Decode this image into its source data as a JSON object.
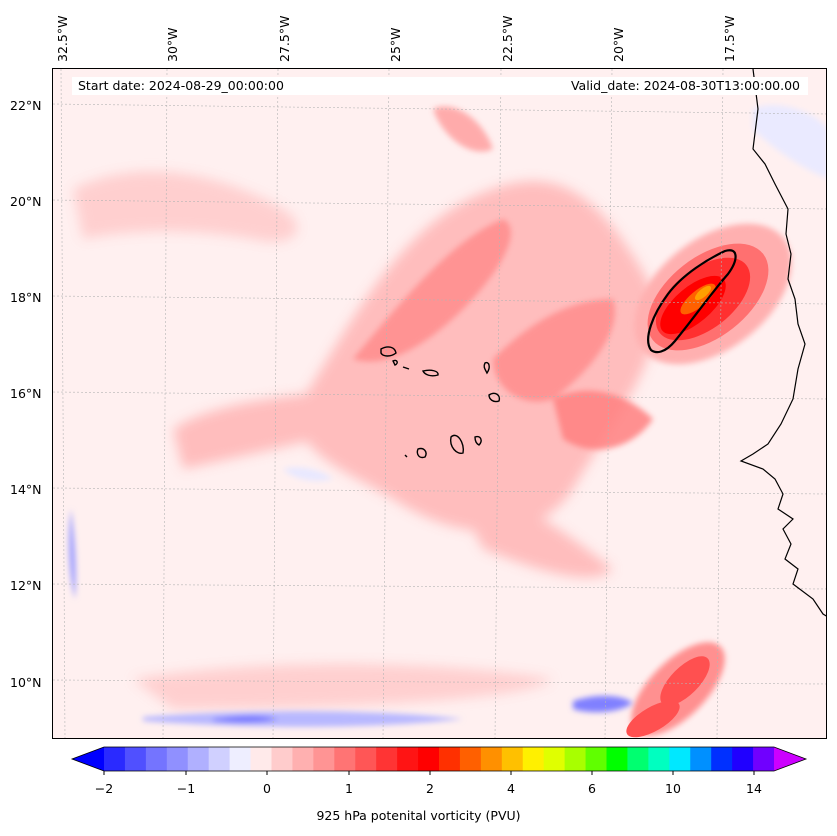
{
  "map": {
    "start_date": "Start date: 2024-08-29_00:00:00",
    "valid_date": "Valid_date: 2024-08-30T13:00:00.00",
    "lon_labels": [
      "32.5°W",
      "30°W",
      "27.5°W",
      "25°W",
      "22.5°W",
      "20°W",
      "17.5°W"
    ],
    "lat_labels": [
      "22°N",
      "20°N",
      "18°N",
      "16°N",
      "14°N",
      "12°N",
      "10°N"
    ],
    "colors": {
      "coast": "#000000",
      "gridline": "#b4b4b4",
      "background": "#fff0f0"
    }
  },
  "colorbar": {
    "label": "925 hPa potenital vorticity (PVU)",
    "ticks": [
      "−2",
      "−1",
      "0",
      "1",
      "2",
      "4",
      "6",
      "10",
      "14"
    ],
    "colors": [
      "#0000ff",
      "#2a2aff",
      "#5050ff",
      "#7474ff",
      "#9090ff",
      "#b0b0ff",
      "#d0d0ff",
      "#eeeeff",
      "#ffeaea",
      "#ffcccc",
      "#ffb0b0",
      "#ff9494",
      "#ff7474",
      "#ff5656",
      "#ff3434",
      "#ff1414",
      "#ff0000",
      "#ff3000",
      "#ff6000",
      "#ff9000",
      "#ffc000",
      "#fff000",
      "#e0ff00",
      "#a8ff00",
      "#60ff00",
      "#00ff00",
      "#00ff70",
      "#00ffc0",
      "#00e8ff",
      "#0090ff",
      "#0030ff",
      "#2000ff",
      "#7000ff",
      "#cc00ff"
    ]
  }
}
